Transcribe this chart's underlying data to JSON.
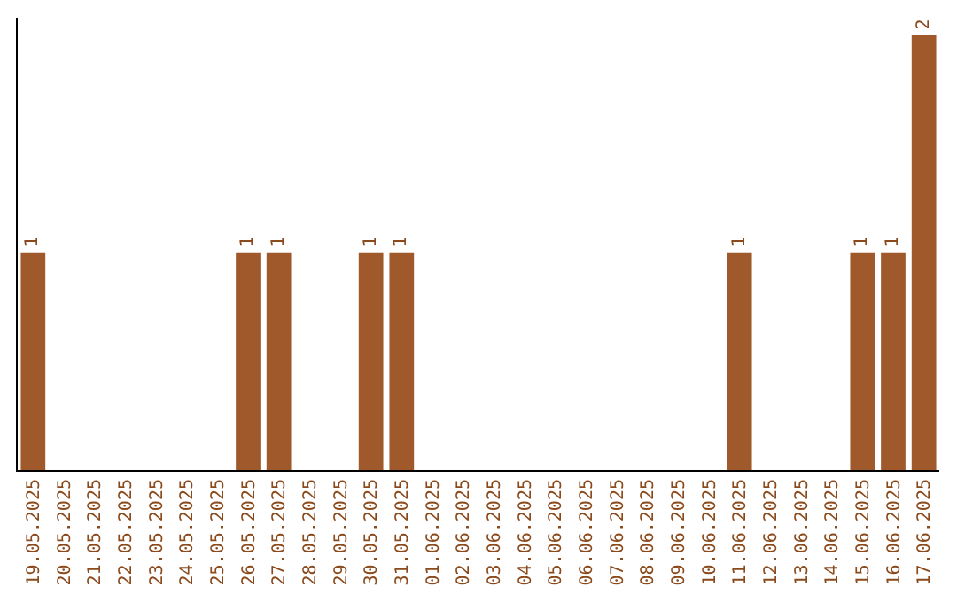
{
  "chart_data": {
    "type": "bar",
    "categories": [
      "19.05.2025",
      "20.05.2025",
      "21.05.2025",
      "22.05.2025",
      "23.05.2025",
      "24.05.2025",
      "25.05.2025",
      "26.05.2025",
      "27.05.2025",
      "28.05.2025",
      "29.05.2025",
      "30.05.2025",
      "31.05.2025",
      "01.06.2025",
      "02.06.2025",
      "03.06.2025",
      "04.06.2025",
      "05.06.2025",
      "06.06.2025",
      "07.06.2025",
      "08.06.2025",
      "09.06.2025",
      "10.06.2025",
      "11.06.2025",
      "12.06.2025",
      "13.06.2025",
      "14.06.2025",
      "15.06.2025",
      "16.06.2025",
      "17.06.2025"
    ],
    "values": [
      1,
      0,
      0,
      0,
      0,
      0,
      0,
      1,
      1,
      0,
      0,
      1,
      1,
      0,
      0,
      0,
      0,
      0,
      0,
      0,
      0,
      0,
      0,
      1,
      0,
      0,
      0,
      1,
      1,
      2
    ],
    "value_labels": [
      "1",
      null,
      null,
      null,
      null,
      null,
      null,
      "1",
      "1",
      null,
      null,
      "1",
      "1",
      null,
      null,
      null,
      null,
      null,
      null,
      null,
      null,
      null,
      null,
      "1",
      null,
      null,
      null,
      "1",
      "1",
      "2"
    ],
    "color": "#a0592b",
    "ylim": [
      0,
      2.08
    ],
    "tick_labels": "x"
  }
}
